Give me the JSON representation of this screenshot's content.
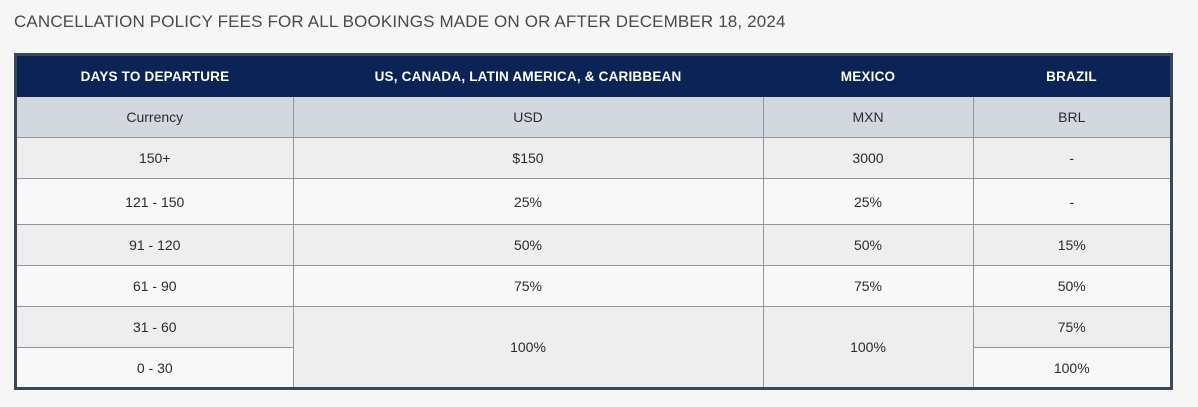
{
  "heading": "CANCELLATION POLICY FEES FOR ALL BOOKINGS MADE ON OR AFTER DECEMBER 18, 2024",
  "table": {
    "headers": [
      "DAYS TO DEPARTURE",
      "US, CANADA, LATIN AMERICA, & CARIBBEAN",
      "MEXICO",
      "BRAZIL"
    ],
    "currency_row": [
      "Currency",
      "USD",
      "MXN",
      "BRL"
    ],
    "rows": [
      [
        "150+",
        "$150",
        "3000",
        "-"
      ],
      [
        "121 - 150",
        "25%",
        "25%",
        "-"
      ],
      [
        "91 - 120",
        "50%",
        "50%",
        "15%"
      ],
      [
        "61 - 90",
        "75%",
        "75%",
        "50%"
      ],
      [
        "31 - 60",
        "100%",
        "100%",
        "75%"
      ],
      [
        "0 - 30",
        "100%",
        "100%",
        "100%"
      ]
    ]
  },
  "colors": {
    "header_bg": "#0c2357",
    "currency_bg": "#d3d7de",
    "border": "#3b4657"
  }
}
